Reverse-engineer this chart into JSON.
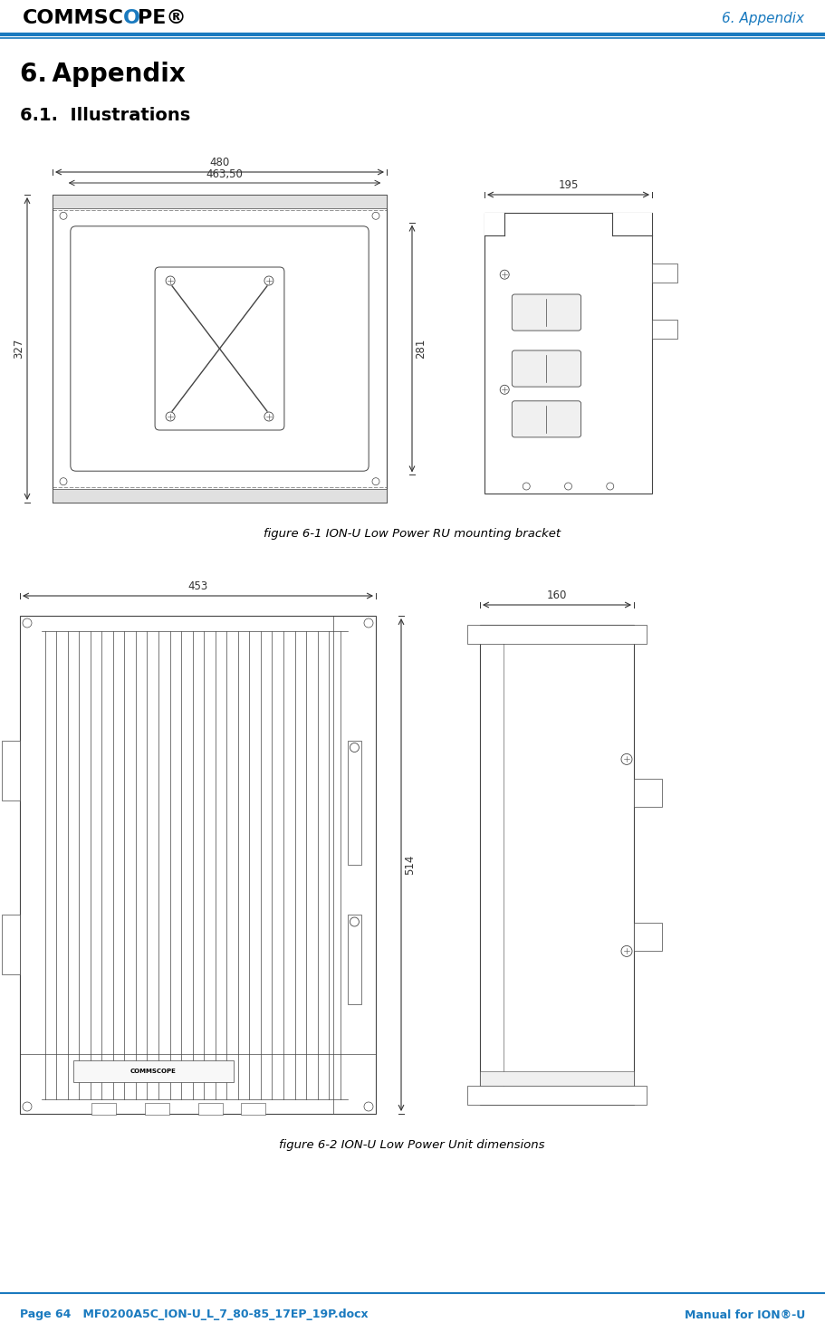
{
  "page_width": 9.11,
  "page_height": 14.82,
  "bg_color": "#ffffff",
  "header_line_color": "#1a7abf",
  "header_text_color": "#1a7abf",
  "header_right_text": "6. Appendix",
  "title_text": "6. Appendix",
  "subtitle_text": "6.1.  Illustrations",
  "figure1_caption": "figure 6-1 ION-U Low Power RU mounting bracket",
  "figure2_caption": "figure 6-2 ION-U Low Power Unit dimensions",
  "footer_left": "Page 64   MF0200A5C_ION-U_L_7_80-85_17EP_19P.docx",
  "footer_right": "Manual for ION®-U",
  "footer_line_color": "#1a7abf",
  "footer_text_color": "#1a7abf",
  "dim_color": "#333333",
  "lc": "#444444"
}
